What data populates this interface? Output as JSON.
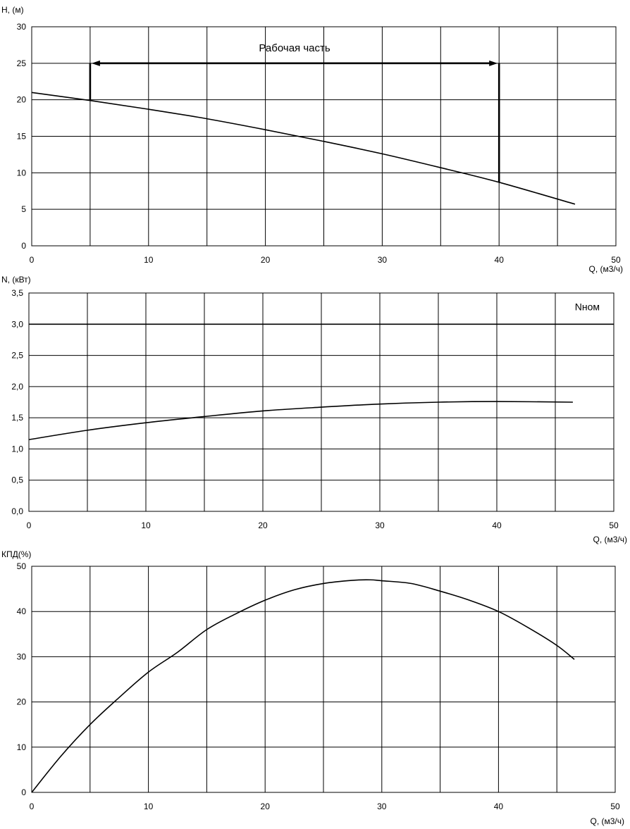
{
  "chart_data": [
    {
      "type": "line",
      "ylabel": "H, (м)",
      "xlabel": "Q, (м3/ч)",
      "xlim": [
        0,
        50
      ],
      "ylim": [
        0,
        30
      ],
      "x_ticks": [
        0,
        10,
        20,
        30,
        40,
        50
      ],
      "y_ticks": [
        0,
        5,
        10,
        15,
        20,
        25,
        30
      ],
      "x_tick_labels": [
        "0",
        "10",
        "20",
        "30",
        "40",
        "50"
      ],
      "y_tick_labels": [
        "0",
        "5",
        "10",
        "15",
        "20",
        "25",
        "30"
      ],
      "grid": true,
      "series": [
        {
          "x": [
            0,
            5,
            10,
            15,
            20,
            25,
            30,
            35,
            40,
            46.5
          ],
          "values": [
            21.0,
            19.9,
            18.7,
            17.4,
            15.9,
            14.3,
            12.6,
            10.7,
            8.7,
            5.7
          ]
        }
      ],
      "annotations": [
        {
          "text": "Рабочая часть",
          "x_range": [
            5,
            40
          ],
          "y": 25
        }
      ]
    },
    {
      "type": "line",
      "ylabel": "N, (кВт)",
      "xlabel": "Q, (м3/ч)",
      "xlim": [
        0,
        50
      ],
      "ylim": [
        0,
        3.5
      ],
      "x_ticks": [
        0,
        10,
        20,
        30,
        40,
        50
      ],
      "y_ticks": [
        0,
        0.5,
        1.0,
        1.5,
        2.0,
        2.5,
        3.0,
        3.5
      ],
      "x_tick_labels": [
        "0",
        "10",
        "20",
        "30",
        "40",
        "50"
      ],
      "y_tick_labels": [
        "0,0",
        "0,5",
        "1,0",
        "1,5",
        "2,0",
        "2,5",
        "3,0",
        "3,5"
      ],
      "grid": true,
      "series": [
        {
          "x": [
            0,
            5,
            10,
            15,
            20,
            25,
            30,
            35,
            40,
            46.5
          ],
          "values": [
            1.15,
            1.3,
            1.42,
            1.52,
            1.61,
            1.67,
            1.72,
            1.75,
            1.76,
            1.75
          ]
        },
        {
          "name": "Nном",
          "x": [
            0,
            50
          ],
          "values": [
            3.0,
            3.0
          ]
        }
      ]
    },
    {
      "type": "line",
      "ylabel": "КПД(%)",
      "xlabel": "Q, (м3/ч)",
      "xlim": [
        0,
        50
      ],
      "ylim": [
        0,
        50
      ],
      "x_ticks": [
        0,
        10,
        20,
        30,
        40,
        50
      ],
      "y_ticks": [
        0,
        10,
        20,
        30,
        40,
        50
      ],
      "x_tick_labels": [
        "0",
        "10",
        "20",
        "30",
        "40",
        "50"
      ],
      "y_tick_labels": [
        "0",
        "10",
        "20",
        "30",
        "40",
        "50"
      ],
      "grid": true,
      "series": [
        {
          "x": [
            0,
            2.5,
            5,
            7.5,
            10,
            12.5,
            15,
            17.5,
            20,
            22.5,
            25,
            27.5,
            29,
            30,
            32.5,
            35,
            37.5,
            40,
            42.5,
            45,
            46.5
          ],
          "values": [
            0,
            8,
            15,
            21,
            26.6,
            31,
            36,
            39.5,
            42.5,
            44.8,
            46.2,
            46.9,
            47.0,
            46.8,
            46.2,
            44.5,
            42.5,
            40.0,
            36.5,
            32.5,
            29.4
          ]
        }
      ]
    }
  ]
}
